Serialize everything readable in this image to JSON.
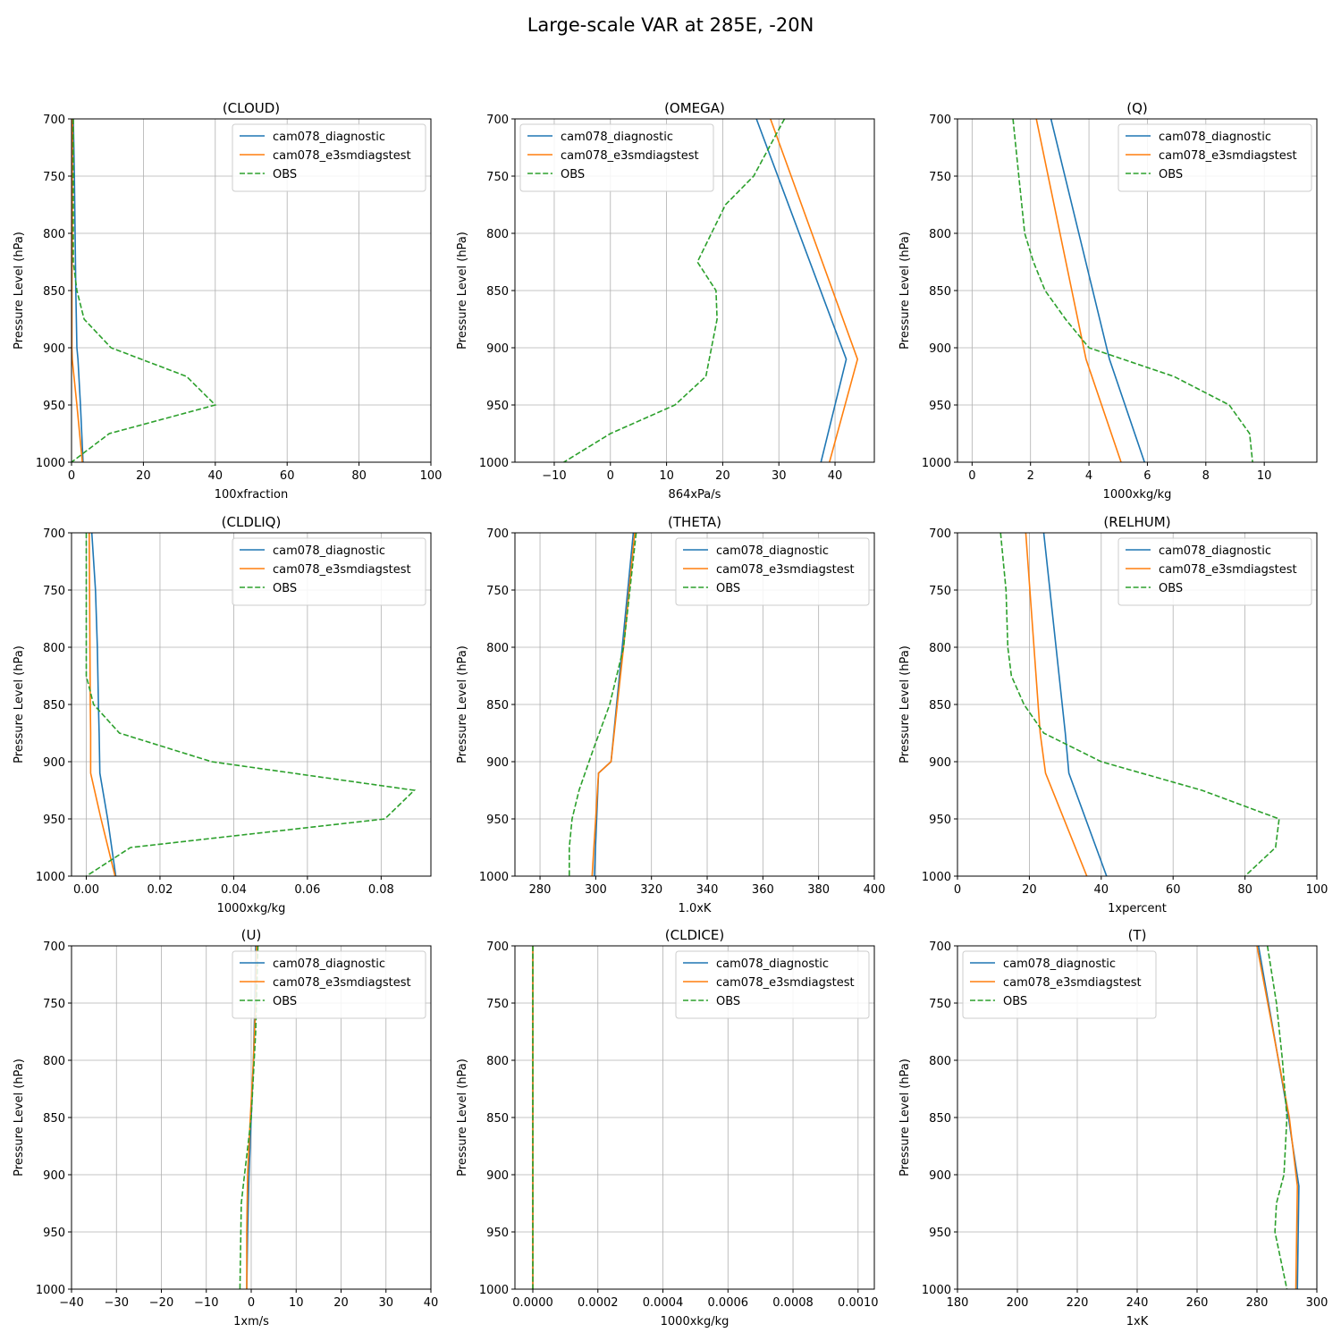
{
  "figure": {
    "title": "Large-scale VAR at 285E, -20N"
  },
  "styles": {
    "series_colors": [
      "#1f77b4",
      "#ff7f0e",
      "#2ca02c"
    ],
    "series_dash": [
      "solid",
      "solid",
      "dashed"
    ],
    "grid_color": "#b0b0b0"
  },
  "chart_data": [
    {
      "type": "line",
      "title": "(CLOUD)",
      "xlabel": "100xfraction",
      "ylabel": "Pressure Level (hPa)",
      "xlim": [
        0,
        100
      ],
      "ylim": [
        1000,
        700
      ],
      "xticks": [
        0,
        20,
        40,
        60,
        80,
        100
      ],
      "xtick_labels": [
        "0",
        "20",
        "40",
        "60",
        "80",
        "100"
      ],
      "yticks": [
        700,
        750,
        800,
        850,
        900,
        950,
        1000
      ],
      "ytick_labels": [
        "700",
        "750",
        "800",
        "850",
        "900",
        "950",
        "1000"
      ],
      "grid": true,
      "legend_position": "upper right",
      "series": [
        {
          "name": "cam078_diagnostic",
          "x": [
            0.5,
            0.8,
            1.0,
            1.2,
            1.5,
            1.8,
            2.5,
            3.2
          ],
          "y": [
            700,
            750,
            800,
            850,
            900,
            910,
            950,
            1000
          ]
        },
        {
          "name": "cam078_e3smdiagstest",
          "x": [
            0.3,
            0.2,
            0.2,
            0.1,
            0.1,
            0.2,
            1.5,
            3.0
          ],
          "y": [
            700,
            750,
            800,
            850,
            900,
            910,
            950,
            1000
          ]
        },
        {
          "name": "OBS",
          "x": [
            0.5,
            0.5,
            0.5,
            1.5,
            3.5,
            11.0,
            32.0,
            40.0,
            10.5,
            0.0
          ],
          "y": [
            700,
            750,
            825,
            850,
            875,
            900,
            925,
            950,
            975,
            1000
          ]
        }
      ]
    },
    {
      "type": "line",
      "title": "(OMEGA)",
      "xlabel": "864xPa/s",
      "ylabel": "Pressure Level (hPa)",
      "xlim": [
        -17,
        47
      ],
      "ylim": [
        1000,
        700
      ],
      "xticks": [
        -10,
        0,
        10,
        20,
        30,
        40
      ],
      "xtick_labels": [
        "−10",
        "0",
        "10",
        "20",
        "30",
        "40"
      ],
      "yticks": [
        700,
        750,
        800,
        850,
        900,
        950,
        1000
      ],
      "ytick_labels": [
        "700",
        "750",
        "800",
        "850",
        "900",
        "950",
        "1000"
      ],
      "grid": true,
      "legend_position": "upper left",
      "series": [
        {
          "name": "cam078_diagnostic",
          "x": [
            26.0,
            42.0,
            37.5
          ],
          "y": [
            700,
            910,
            1000
          ]
        },
        {
          "name": "cam078_e3smdiagstest",
          "x": [
            28.5,
            44.0,
            39.0
          ],
          "y": [
            700,
            910,
            1000
          ]
        },
        {
          "name": "OBS",
          "x": [
            31.0,
            25.5,
            20.5,
            15.5,
            18.8,
            19.0,
            17.0,
            11.5,
            0.0,
            -8.3
          ],
          "y": [
            700,
            750,
            775,
            825,
            850,
            875,
            925,
            950,
            975,
            1000
          ]
        }
      ]
    },
    {
      "type": "line",
      "title": "(Q)",
      "xlabel": "1000xkg/kg",
      "ylabel": "Pressure Level (hPa)",
      "xlim": [
        -0.5,
        11.8
      ],
      "ylim": [
        1000,
        700
      ],
      "xticks": [
        0,
        2,
        4,
        6,
        8,
        10
      ],
      "xtick_labels": [
        "0",
        "2",
        "4",
        "6",
        "8",
        "10"
      ],
      "yticks": [
        700,
        750,
        800,
        850,
        900,
        950,
        1000
      ],
      "ytick_labels": [
        "700",
        "750",
        "800",
        "850",
        "900",
        "950",
        "1000"
      ],
      "grid": true,
      "legend_position": "upper right",
      "series": [
        {
          "name": "cam078_diagnostic",
          "x": [
            2.7,
            4.7,
            5.9
          ],
          "y": [
            700,
            910,
            1000
          ]
        },
        {
          "name": "cam078_e3smdiagstest",
          "x": [
            2.2,
            3.9,
            5.1
          ],
          "y": [
            700,
            910,
            1000
          ]
        },
        {
          "name": "OBS",
          "x": [
            1.4,
            1.6,
            1.8,
            2.1,
            2.5,
            3.2,
            4.0,
            6.9,
            8.8,
            9.5,
            9.6
          ],
          "y": [
            700,
            750,
            800,
            825,
            850,
            875,
            900,
            925,
            950,
            975,
            1000
          ]
        }
      ]
    },
    {
      "type": "line",
      "title": "(CLDLIQ)",
      "xlabel": "1000xkg/kg",
      "ylabel": "Pressure Level (hPa)",
      "xlim": [
        -0.004,
        0.0935
      ],
      "ylim": [
        1000,
        700
      ],
      "xticks": [
        0.0,
        0.02,
        0.04,
        0.06,
        0.08
      ],
      "xtick_labels": [
        "0.00",
        "0.02",
        "0.04",
        "0.06",
        "0.08"
      ],
      "yticks": [
        700,
        750,
        800,
        850,
        900,
        950,
        1000
      ],
      "ytick_labels": [
        "700",
        "750",
        "800",
        "850",
        "900",
        "950",
        "1000"
      ],
      "grid": true,
      "legend_position": "upper right",
      "series": [
        {
          "name": "cam078_diagnostic",
          "x": [
            0.0015,
            0.0025,
            0.003,
            0.0033,
            0.0035,
            0.0037,
            0.0058,
            0.008
          ],
          "y": [
            700,
            750,
            800,
            850,
            875,
            910,
            950,
            1000
          ]
        },
        {
          "name": "cam078_e3smdiagstest",
          "x": [
            0.0008,
            0.0009,
            0.001,
            0.0011,
            0.0012,
            0.0012,
            0.004,
            0.0078
          ],
          "y": [
            700,
            750,
            800,
            850,
            875,
            910,
            950,
            1000
          ]
        },
        {
          "name": "OBS",
          "x": [
            0.0,
            0.0,
            0.0,
            0.0,
            0.002,
            0.009,
            0.034,
            0.089,
            0.081,
            0.012,
            0.0
          ],
          "y": [
            700,
            750,
            800,
            825,
            850,
            875,
            900,
            925,
            950,
            975,
            1000
          ]
        }
      ]
    },
    {
      "type": "line",
      "title": "(THETA)",
      "xlabel": "1.0xK",
      "ylabel": "Pressure Level (hPa)",
      "xlim": [
        271,
        400
      ],
      "ylim": [
        1000,
        700
      ],
      "xticks": [
        280,
        300,
        320,
        340,
        360,
        380,
        400
      ],
      "xtick_labels": [
        "280",
        "300",
        "320",
        "340",
        "360",
        "380",
        "400"
      ],
      "yticks": [
        700,
        750,
        800,
        850,
        900,
        950,
        1000
      ],
      "ytick_labels": [
        "700",
        "750",
        "800",
        "850",
        "900",
        "950",
        "1000"
      ],
      "grid": true,
      "legend_position": "upper right",
      "series": [
        {
          "name": "cam078_diagnostic",
          "x": [
            313.5,
            309.5,
            305.5,
            301.0,
            299.5
          ],
          "y": [
            700,
            800,
            900,
            910,
            1000
          ]
        },
        {
          "name": "cam078_e3smdiagstest",
          "x": [
            314.0,
            310.0,
            305.5,
            301.0,
            298.7
          ],
          "y": [
            700,
            800,
            900,
            910,
            1000
          ]
        },
        {
          "name": "OBS",
          "x": [
            314.5,
            310.0,
            305.0,
            299.0,
            294.0,
            291.5,
            290.5,
            290.5
          ],
          "y": [
            700,
            800,
            850,
            890,
            925,
            950,
            975,
            1000
          ]
        }
      ]
    },
    {
      "type": "line",
      "title": "(RELHUM)",
      "xlabel": "1xpercent",
      "ylabel": "Pressure Level (hPa)",
      "xlim": [
        0,
        100
      ],
      "ylim": [
        1000,
        700
      ],
      "xticks": [
        0,
        20,
        40,
        60,
        80,
        100
      ],
      "xtick_labels": [
        "0",
        "20",
        "40",
        "60",
        "80",
        "100"
      ],
      "yticks": [
        700,
        750,
        800,
        850,
        900,
        950,
        1000
      ],
      "ytick_labels": [
        "700",
        "750",
        "800",
        "850",
        "900",
        "950",
        "1000"
      ],
      "grid": true,
      "legend_position": "upper right",
      "series": [
        {
          "name": "cam078_diagnostic",
          "x": [
            24.0,
            30.0,
            31.0,
            41.5
          ],
          "y": [
            700,
            875,
            910,
            1000
          ]
        },
        {
          "name": "cam078_e3smdiagstest",
          "x": [
            19.0,
            23.0,
            24.5,
            36.0
          ],
          "y": [
            700,
            875,
            910,
            1000
          ]
        },
        {
          "name": "OBS",
          "x": [
            12.0,
            13.5,
            14.0,
            15.0,
            18.5,
            24.0,
            40.0,
            68.0,
            89.5,
            88.5,
            80.0
          ],
          "y": [
            700,
            750,
            800,
            825,
            850,
            875,
            900,
            925,
            950,
            975,
            1000
          ]
        }
      ]
    },
    {
      "type": "line",
      "title": "(U)",
      "xlabel": "1xm/s",
      "ylabel": "Pressure Level (hPa)",
      "xlim": [
        -40,
        40
      ],
      "ylim": [
        1000,
        700
      ],
      "xticks": [
        -40,
        -30,
        -20,
        -10,
        0,
        10,
        20,
        30,
        40
      ],
      "xtick_labels": [
        "−40",
        "−30",
        "−20",
        "−10",
        "0",
        "10",
        "20",
        "30",
        "40"
      ],
      "yticks": [
        700,
        750,
        800,
        850,
        900,
        950,
        1000
      ],
      "ytick_labels": [
        "700",
        "750",
        "800",
        "850",
        "900",
        "950",
        "1000"
      ],
      "grid": true,
      "legend_position": "upper right",
      "series": [
        {
          "name": "cam078_diagnostic",
          "x": [
            1.0,
            0.8,
            0.5,
            0.0,
            -0.5,
            -0.8,
            -1.0
          ],
          "y": [
            700,
            750,
            800,
            850,
            900,
            950,
            1000
          ]
        },
        {
          "name": "cam078_e3smdiagstest",
          "x": [
            1.2,
            1.0,
            0.5,
            -0.2,
            -0.8,
            -1.0,
            -1.0
          ],
          "y": [
            700,
            750,
            800,
            850,
            900,
            950,
            1000
          ]
        },
        {
          "name": "OBS",
          "x": [
            1.5,
            1.0,
            0.0,
            -1.5,
            -2.2,
            -2.3,
            -2.5
          ],
          "y": [
            700,
            775,
            850,
            900,
            925,
            950,
            1000
          ]
        }
      ]
    },
    {
      "type": "line",
      "title": "(CLDICE)",
      "xlabel": "1000xkg/kg",
      "ylabel": "Pressure Level (hPa)",
      "xlim": [
        -5.5e-05,
        0.00105
      ],
      "ylim": [
        1000,
        700
      ],
      "xticks": [
        0.0,
        0.0002,
        0.0004,
        0.0006,
        0.0008,
        0.001
      ],
      "xtick_labels": [
        "0.0000",
        "0.0002",
        "0.0004",
        "0.0006",
        "0.0008",
        "0.0010"
      ],
      "yticks": [
        700,
        750,
        800,
        850,
        900,
        950,
        1000
      ],
      "ytick_labels": [
        "700",
        "750",
        "800",
        "850",
        "900",
        "950",
        "1000"
      ],
      "grid": true,
      "legend_position": "upper right",
      "series": [
        {
          "name": "cam078_diagnostic",
          "x": [
            0.0,
            0.0
          ],
          "y": [
            700,
            1000
          ]
        },
        {
          "name": "cam078_e3smdiagstest",
          "x": [
            0.0,
            0.0
          ],
          "y": [
            700,
            1000
          ]
        },
        {
          "name": "OBS",
          "x": [
            0.0,
            0.0
          ],
          "y": [
            700,
            1000
          ]
        }
      ]
    },
    {
      "type": "line",
      "title": "(T)",
      "xlabel": "1xK",
      "ylabel": "Pressure Level (hPa)",
      "xlim": [
        180,
        300
      ],
      "ylim": [
        1000,
        700
      ],
      "xticks": [
        180,
        200,
        220,
        240,
        260,
        280,
        300
      ],
      "xtick_labels": [
        "180",
        "200",
        "220",
        "240",
        "260",
        "280",
        "300"
      ],
      "yticks": [
        700,
        750,
        800,
        850,
        900,
        950,
        1000
      ],
      "ytick_labels": [
        "700",
        "750",
        "800",
        "850",
        "900",
        "950",
        "1000"
      ],
      "grid": true,
      "legend_position": "upper left",
      "series": [
        {
          "name": "cam078_diagnostic",
          "x": [
            280.5,
            290.5,
            294.0,
            293.5
          ],
          "y": [
            700,
            850,
            910,
            1000
          ]
        },
        {
          "name": "cam078_e3smdiagstest",
          "x": [
            280.0,
            290.8,
            293.5,
            293.0
          ],
          "y": [
            700,
            850,
            910,
            1000
          ]
        },
        {
          "name": "OBS",
          "x": [
            283.5,
            286.5,
            288.5,
            290.0,
            289.0,
            286.5,
            286.0,
            290.0
          ],
          "y": [
            700,
            750,
            800,
            850,
            900,
            925,
            950,
            1000
          ]
        }
      ]
    }
  ]
}
